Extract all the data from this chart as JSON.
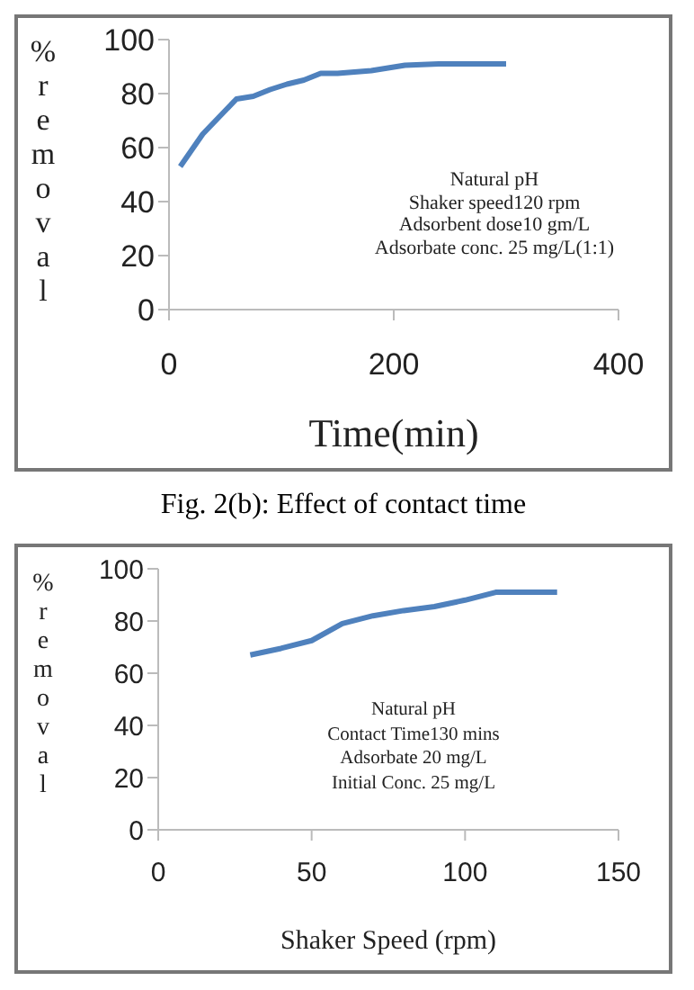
{
  "chart_data": [
    {
      "type": "line",
      "xlabel": "Time(min)",
      "ylabel": "% removal",
      "annotations": [
        "Natural pH",
        "Shaker speed120 rpm",
        "Adsorbent dose10 gm/L",
        "Adsorbate conc. 25 mg/L(1:1)",
        "Fig. 2(b): Effect of contact time"
      ],
      "x": [
        10,
        30,
        60,
        75,
        90,
        105,
        120,
        135,
        150,
        180,
        210,
        240,
        270,
        300
      ],
      "series": [
        {
          "color": "#4f81bd",
          "values": [
            53,
            65,
            78,
            79,
            81.5,
            83.5,
            85,
            87.5,
            87.5,
            88.5,
            90.5,
            91,
            91,
            91
          ]
        }
      ],
      "xlim": [
        0,
        400
      ],
      "xticks": [
        0,
        200,
        400
      ],
      "ylim": [
        0,
        100
      ],
      "yticks": [
        0,
        20,
        40,
        60,
        80,
        100
      ],
      "grid": false,
      "legend": false,
      "marker": "none",
      "line_style": "solid"
    },
    {
      "type": "line",
      "xlabel": "Shaker Speed (rpm)",
      "ylabel": "% removal",
      "annotations": [
        "Natural pH",
        "Contact Time130 mins",
        "Adsorbate 20 mg/L",
        "Initial Conc. 25 mg/L"
      ],
      "x": [
        30,
        40,
        50,
        60,
        70,
        80,
        90,
        100,
        110,
        120,
        130
      ],
      "series": [
        {
          "color": "#4f81bd",
          "values": [
            67,
            69.5,
            72.5,
            79,
            82,
            84,
            85.5,
            88,
            91,
            91,
            91
          ]
        }
      ],
      "xlim": [
        0,
        150
      ],
      "xticks": [
        0,
        50,
        100,
        150
      ],
      "ylim": [
        0,
        100
      ],
      "yticks": [
        0,
        20,
        40,
        60,
        80,
        100
      ],
      "grid": false,
      "legend": false,
      "marker": "none",
      "line_style": "solid"
    }
  ]
}
